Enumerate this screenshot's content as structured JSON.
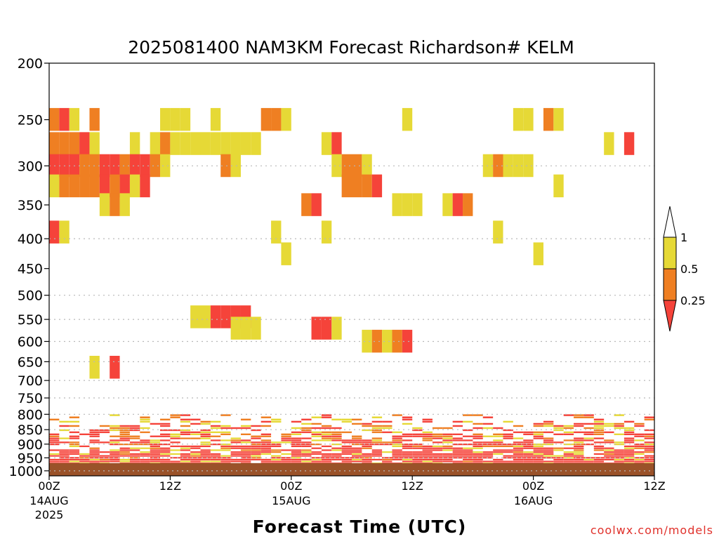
{
  "chart_data": {
    "type": "heatmap",
    "title": "2025081400 NAM3KM Forecast Richardson# KELM",
    "xlabel": "Forecast Time (UTC)",
    "ylabel": "",
    "credit": "coolwx.com/models",
    "x_unit": "hours from 2025081400",
    "xlim": [
      0,
      60
    ],
    "ylim": [
      1020,
      200
    ],
    "y_scale": "log-pressure",
    "grid": "dotted horizontal",
    "x_ticks": [
      {
        "hour": 0,
        "label": "00Z",
        "sub1": "14AUG",
        "sub2": "2025"
      },
      {
        "hour": 12,
        "label": "12Z",
        "sub1": "",
        "sub2": ""
      },
      {
        "hour": 24,
        "label": "00Z",
        "sub1": "15AUG",
        "sub2": ""
      },
      {
        "hour": 36,
        "label": "12Z",
        "sub1": "",
        "sub2": ""
      },
      {
        "hour": 48,
        "label": "00Z",
        "sub1": "16AUG",
        "sub2": ""
      },
      {
        "hour": 60,
        "label": "12Z",
        "sub1": "",
        "sub2": ""
      }
    ],
    "y_ticks": [
      200,
      250,
      300,
      350,
      400,
      450,
      500,
      550,
      600,
      650,
      700,
      750,
      800,
      850,
      900,
      950,
      1000
    ],
    "y_tick_labels": [
      "200",
      "250",
      "300",
      "350",
      "400",
      "450",
      "500",
      "550",
      "600",
      "650",
      "700",
      "750",
      "800",
      "850",
      "900",
      "950",
      "1000"
    ],
    "gridlines": [
      300,
      400,
      500,
      550,
      600,
      650,
      700,
      750,
      800,
      850,
      900,
      950,
      1000
    ],
    "ground_level": 970,
    "colorbar": {
      "labels": [
        "1",
        "0.5",
        "0.25"
      ],
      "bins": [
        {
          "range": "<0.25",
          "color": "#f5433a"
        },
        {
          "range": "0.25-0.5",
          "color": "#ef7f22"
        },
        {
          "range": "0.5-1",
          "color": "#e6d936"
        },
        {
          "range": ">1",
          "color": "#ffffff"
        }
      ]
    },
    "colors": {
      "yellow": "#e6d936",
      "orange": "#ef7f22",
      "red": "#f5433a",
      "ground": "#9a5229"
    },
    "cells": [
      [
        0,
        250,
        "o"
      ],
      [
        1,
        250,
        "r"
      ],
      [
        2,
        250,
        "y"
      ],
      [
        4,
        250,
        "o"
      ],
      [
        11,
        250,
        "y"
      ],
      [
        12,
        250,
        "y"
      ],
      [
        13,
        250,
        "y"
      ],
      [
        16,
        250,
        "y"
      ],
      [
        21,
        250,
        "o"
      ],
      [
        22,
        250,
        "o"
      ],
      [
        23,
        250,
        "y"
      ],
      [
        35,
        250,
        "y"
      ],
      [
        46,
        250,
        "y"
      ],
      [
        47,
        250,
        "y"
      ],
      [
        49,
        250,
        "o"
      ],
      [
        50,
        250,
        "y"
      ],
      [
        0,
        275,
        "o"
      ],
      [
        1,
        275,
        "o"
      ],
      [
        2,
        275,
        "o"
      ],
      [
        3,
        275,
        "r"
      ],
      [
        4,
        275,
        "y"
      ],
      [
        8,
        275,
        "y"
      ],
      [
        10,
        275,
        "y"
      ],
      [
        11,
        275,
        "o"
      ],
      [
        12,
        275,
        "y"
      ],
      [
        13,
        275,
        "y"
      ],
      [
        14,
        275,
        "y"
      ],
      [
        15,
        275,
        "y"
      ],
      [
        16,
        275,
        "y"
      ],
      [
        17,
        275,
        "y"
      ],
      [
        18,
        275,
        "y"
      ],
      [
        19,
        275,
        "y"
      ],
      [
        20,
        275,
        "y"
      ],
      [
        27,
        275,
        "y"
      ],
      [
        28,
        275,
        "r"
      ],
      [
        55,
        275,
        "y"
      ],
      [
        57,
        275,
        "r"
      ],
      [
        0,
        300,
        "r"
      ],
      [
        1,
        300,
        "r"
      ],
      [
        2,
        300,
        "r"
      ],
      [
        3,
        300,
        "o"
      ],
      [
        4,
        300,
        "o"
      ],
      [
        5,
        300,
        "r"
      ],
      [
        6,
        300,
        "r"
      ],
      [
        7,
        300,
        "o"
      ],
      [
        8,
        300,
        "r"
      ],
      [
        9,
        300,
        "r"
      ],
      [
        10,
        300,
        "o"
      ],
      [
        11,
        300,
        "y"
      ],
      [
        17,
        300,
        "o"
      ],
      [
        18,
        300,
        "y"
      ],
      [
        28,
        300,
        "y"
      ],
      [
        29,
        300,
        "o"
      ],
      [
        30,
        300,
        "o"
      ],
      [
        31,
        300,
        "y"
      ],
      [
        43,
        300,
        "y"
      ],
      [
        44,
        300,
        "o"
      ],
      [
        45,
        300,
        "y"
      ],
      [
        46,
        300,
        "y"
      ],
      [
        47,
        300,
        "y"
      ],
      [
        0,
        325,
        "y"
      ],
      [
        1,
        325,
        "o"
      ],
      [
        2,
        325,
        "o"
      ],
      [
        3,
        325,
        "o"
      ],
      [
        4,
        325,
        "o"
      ],
      [
        5,
        325,
        "r"
      ],
      [
        6,
        325,
        "o"
      ],
      [
        7,
        325,
        "r"
      ],
      [
        8,
        325,
        "y"
      ],
      [
        9,
        325,
        "r"
      ],
      [
        29,
        325,
        "o"
      ],
      [
        30,
        325,
        "o"
      ],
      [
        31,
        325,
        "o"
      ],
      [
        32,
        325,
        "r"
      ],
      [
        50,
        325,
        "y"
      ],
      [
        5,
        350,
        "y"
      ],
      [
        6,
        350,
        "o"
      ],
      [
        7,
        350,
        "y"
      ],
      [
        25,
        350,
        "o"
      ],
      [
        26,
        350,
        "r"
      ],
      [
        34,
        350,
        "y"
      ],
      [
        35,
        350,
        "y"
      ],
      [
        36,
        350,
        "y"
      ],
      [
        39,
        350,
        "y"
      ],
      [
        40,
        350,
        "r"
      ],
      [
        41,
        350,
        "o"
      ],
      [
        0,
        390,
        "r"
      ],
      [
        1,
        390,
        "y"
      ],
      [
        22,
        390,
        "y"
      ],
      [
        27,
        390,
        "y"
      ],
      [
        44,
        390,
        "y"
      ],
      [
        23,
        425,
        "y"
      ],
      [
        48,
        425,
        "y"
      ],
      [
        14,
        545,
        "y"
      ],
      [
        15,
        545,
        "y"
      ],
      [
        16,
        545,
        "r"
      ],
      [
        17,
        545,
        "r"
      ],
      [
        18,
        545,
        "r"
      ],
      [
        19,
        545,
        "r"
      ],
      [
        18,
        570,
        "y"
      ],
      [
        19,
        570,
        "y"
      ],
      [
        20,
        570,
        "y"
      ],
      [
        26,
        570,
        "r"
      ],
      [
        27,
        570,
        "r"
      ],
      [
        28,
        570,
        "y"
      ],
      [
        31,
        600,
        "y"
      ],
      [
        32,
        600,
        "o"
      ],
      [
        33,
        600,
        "y"
      ],
      [
        34,
        600,
        "o"
      ],
      [
        35,
        600,
        "r"
      ],
      [
        4,
        665,
        "y"
      ],
      [
        6,
        665,
        "r"
      ]
    ],
    "note_low_levels": "dense red/orange/yellow layer between 800 and 970 hPa across the whole period"
  }
}
